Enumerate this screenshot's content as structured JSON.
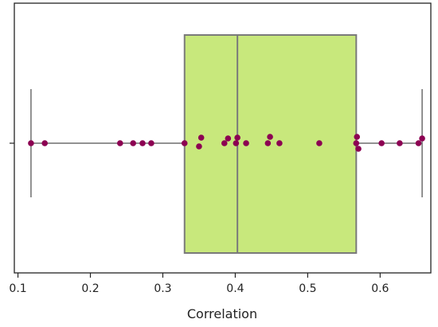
{
  "chart_data": {
    "type": "box",
    "xlabel": "Correlation",
    "ylabel": "",
    "xlim": [
      0.095,
      0.67
    ],
    "x_ticks": [
      0.1,
      0.2,
      0.3,
      0.4,
      0.5,
      0.6
    ],
    "x_tick_labels": [
      "0.1",
      "0.2",
      "0.3",
      "0.4",
      "0.5",
      "0.6"
    ],
    "grid": false,
    "box": {
      "whisker_low": 0.118,
      "q1": 0.33,
      "median": 0.403,
      "q3": 0.567,
      "whisker_high": 0.658
    },
    "points": [
      0.118,
      0.137,
      0.241,
      0.259,
      0.272,
      0.284,
      0.33,
      0.35,
      0.353,
      0.385,
      0.39,
      0.401,
      0.403,
      0.415,
      0.445,
      0.448,
      0.461,
      0.516,
      0.567,
      0.568,
      0.57,
      0.602,
      0.627,
      0.653,
      0.658
    ],
    "colors": {
      "box_fill": "#c8e87c",
      "box_edge": "#7a7a7a",
      "whisker": "#6e6e6e",
      "point": "#8c0052",
      "frame": "#222222"
    }
  }
}
